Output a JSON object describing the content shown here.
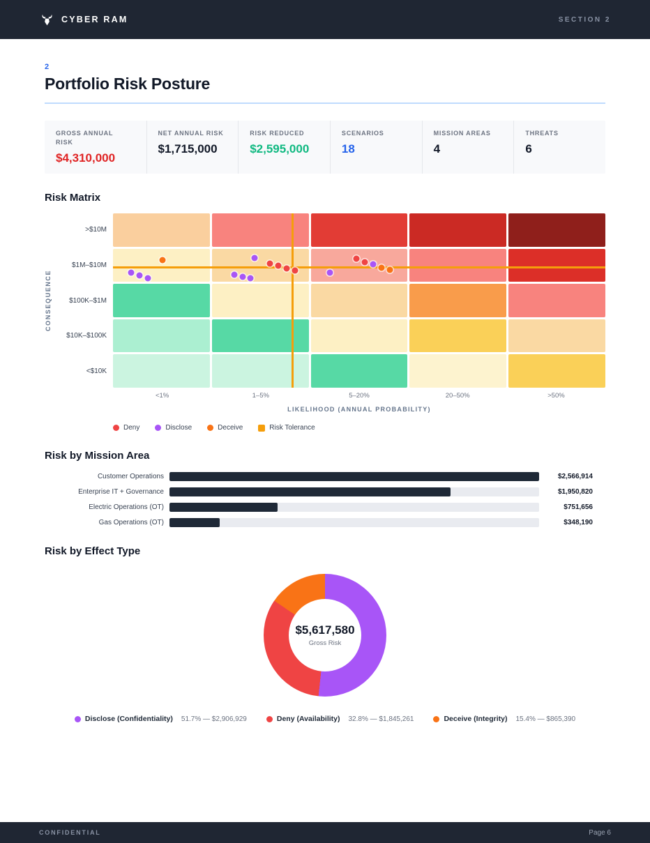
{
  "header": {
    "brand": "CYBER RAM",
    "section": "SECTION 2"
  },
  "title_block": {
    "section_number": "2",
    "title": "Portfolio Risk Posture"
  },
  "stats": [
    {
      "label": "GROSS ANNUAL RISK",
      "value": "$4,310,000",
      "color": "#e02424"
    },
    {
      "label": "NET ANNUAL RISK",
      "value": "$1,715,000",
      "color": "#111827"
    },
    {
      "label": "RISK REDUCED",
      "value": "$2,595,000",
      "color": "#10b981"
    },
    {
      "label": "SCENARIOS",
      "value": "18",
      "color": "#2563eb"
    },
    {
      "label": "MISSION AREAS",
      "value": "4",
      "color": "#111827"
    },
    {
      "label": "THREATS",
      "value": "6",
      "color": "#111827"
    }
  ],
  "sections": {
    "matrix_title": "Risk Matrix",
    "mission_title": "Risk by Mission Area",
    "effect_title": "Risk by Effect Type"
  },
  "colors": {
    "deny": "#ef4444",
    "disclose": "#a855f7",
    "deceive": "#f97316",
    "tolerance": "#f59e0b",
    "bar": "#1f2937",
    "accent_blue": "#2563eb"
  },
  "chart_data": [
    {
      "type": "heatmap",
      "title": "Risk Matrix",
      "xlabel": "LIKELIHOOD (ANNUAL PROBABILITY)",
      "ylabel": "CONSEQUENCE",
      "x_categories": [
        "<1%",
        "1–5%",
        "5–20%",
        "20–50%",
        ">50%"
      ],
      "y_categories": [
        ">$10M",
        "$1M–$10M",
        "$100K–$1M",
        "$10K–$100K",
        "<$10K"
      ],
      "cell_colors": [
        [
          "#facf9e",
          "#f8837e",
          "#e23c35",
          "#cb2a24",
          "#8f1f1b"
        ],
        [
          "#fdf0c4",
          "#fad9a3",
          "#f8a89c",
          "#f8837e",
          "#dc2f28"
        ],
        [
          "#57d9a5",
          "#fdf0c4",
          "#fad9a3",
          "#f99c4b",
          "#f8837e"
        ],
        [
          "#abefd1",
          "#57d9a5",
          "#fdf0c4",
          "#fad058",
          "#fad9a3"
        ],
        [
          "#cbf4e0",
          "#cbf4e0",
          "#57d9a5",
          "#fdf3cf",
          "#fad058"
        ]
      ],
      "risk_tolerance_line": {
        "x_pct": 36.2,
        "y_pct": 30.4
      },
      "scenario_points": [
        {
          "x_pct": 3.7,
          "y_pct": 34.0,
          "effect": "disclose"
        },
        {
          "x_pct": 5.4,
          "y_pct": 35.6,
          "effect": "disclose"
        },
        {
          "x_pct": 7.1,
          "y_pct": 37.2,
          "effect": "disclose"
        },
        {
          "x_pct": 10.1,
          "y_pct": 26.8,
          "effect": "deceive"
        },
        {
          "x_pct": 24.6,
          "y_pct": 35.2,
          "effect": "disclose"
        },
        {
          "x_pct": 26.3,
          "y_pct": 36.4,
          "effect": "disclose"
        },
        {
          "x_pct": 27.9,
          "y_pct": 37.2,
          "effect": "disclose"
        },
        {
          "x_pct": 28.7,
          "y_pct": 25.6,
          "effect": "disclose"
        },
        {
          "x_pct": 31.9,
          "y_pct": 28.8,
          "effect": "deny"
        },
        {
          "x_pct": 33.6,
          "y_pct": 30.0,
          "effect": "deny"
        },
        {
          "x_pct": 35.3,
          "y_pct": 31.6,
          "effect": "deny"
        },
        {
          "x_pct": 37.0,
          "y_pct": 32.8,
          "effect": "deny"
        },
        {
          "x_pct": 44.0,
          "y_pct": 34.0,
          "effect": "disclose"
        },
        {
          "x_pct": 49.5,
          "y_pct": 26.0,
          "effect": "deny"
        },
        {
          "x_pct": 51.2,
          "y_pct": 28.0,
          "effect": "deny"
        },
        {
          "x_pct": 52.9,
          "y_pct": 29.2,
          "effect": "disclose"
        },
        {
          "x_pct": 54.5,
          "y_pct": 31.2,
          "effect": "deceive"
        },
        {
          "x_pct": 56.2,
          "y_pct": 32.4,
          "effect": "deceive"
        }
      ],
      "legend": [
        {
          "label": "Deny",
          "color_key": "deny",
          "shape": "circle"
        },
        {
          "label": "Disclose",
          "color_key": "disclose",
          "shape": "circle"
        },
        {
          "label": "Deceive",
          "color_key": "deceive",
          "shape": "circle"
        },
        {
          "label": "Risk Tolerance",
          "color_key": "tolerance",
          "shape": "square"
        }
      ]
    },
    {
      "type": "bar",
      "orientation": "horizontal",
      "title": "Risk by Mission Area",
      "categories": [
        "Customer Operations",
        "Enterprise IT + Governance",
        "Electric Operations (OT)",
        "Gas Operations (OT)"
      ],
      "values": [
        2566914,
        1950820,
        751656,
        348190
      ],
      "value_labels": [
        "$2,566,914",
        "$1,950,820",
        "$751,656",
        "$348,190"
      ]
    },
    {
      "type": "pie",
      "title": "Risk by Effect Type",
      "center_value": "$5,617,580",
      "center_label": "Gross Risk",
      "slices": [
        {
          "name": "Disclose (Confidentiality)",
          "pct": 51.7,
          "value": 2906929,
          "detail": "51.7% — $2,906,929",
          "color": "#a855f7"
        },
        {
          "name": "Deny (Availability)",
          "pct": 32.8,
          "value": 1845261,
          "detail": "32.8% — $1,845,261",
          "color": "#ef4444"
        },
        {
          "name": "Deceive (Integrity)",
          "pct": 15.4,
          "value": 865390,
          "detail": "15.4% — $865,390",
          "color": "#f97316"
        }
      ]
    }
  ],
  "footer": {
    "left": "CONFIDENTIAL",
    "right": "Page 6"
  }
}
